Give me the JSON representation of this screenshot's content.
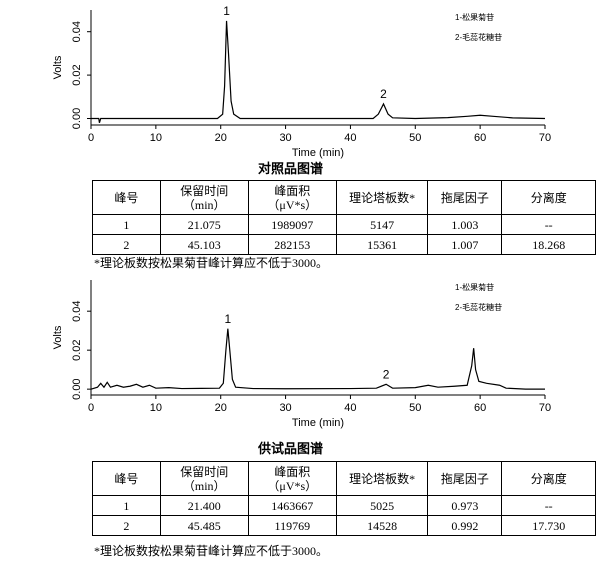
{
  "chart_data": [
    {
      "type": "line",
      "xlabel": "Time (min)",
      "ylabel": "Volts",
      "xlim": [
        0,
        70
      ],
      "xticks": [
        0,
        10,
        20,
        30,
        40,
        50,
        60,
        70
      ],
      "ylim": [
        -0.003,
        0.05
      ],
      "yticks": [
        {
          "value": 0,
          "label": "0.00"
        },
        {
          "value": 0.02,
          "label": "0.02"
        },
        {
          "value": 0.04,
          "label": "0.04"
        }
      ],
      "annotations": [
        "1",
        "2"
      ],
      "notes": [
        "1-松果菊苷",
        "2-毛蕊花糖苷"
      ],
      "x": [
        0,
        1.2,
        1.3,
        1.5,
        5,
        15,
        19.5,
        20.3,
        20.6,
        20.9,
        21.2,
        21.6,
        22,
        23,
        30,
        40,
        43.5,
        44.3,
        45.1,
        45.8,
        46.5,
        50,
        55,
        58,
        60,
        62,
        65,
        70
      ],
      "series": [
        {
          "color": "#000000",
          "values": [
            0,
            0,
            -0.002,
            0,
            0,
            0,
            0,
            0.002,
            0.015,
            0.045,
            0.03,
            0.008,
            0.002,
            0,
            0,
            0,
            0,
            0.002,
            0.0067,
            0.002,
            0.0003,
            0,
            0.0004,
            0.001,
            0.0015,
            0.001,
            0.0003,
            0
          ]
        }
      ]
    },
    {
      "type": "line",
      "xlabel": "Time (min)",
      "ylabel": "Volts",
      "xlim": [
        0,
        70
      ],
      "xticks": [
        0,
        10,
        20,
        30,
        40,
        50,
        60,
        70
      ],
      "ylim": [
        -0.003,
        0.056
      ],
      "yticks": [
        {
          "value": 0,
          "label": "0.00"
        },
        {
          "value": 0.02,
          "label": "0.02"
        },
        {
          "value": 0.04,
          "label": "0.04"
        }
      ],
      "annotations": [
        "1",
        "2"
      ],
      "notes": [
        "1-松果菊苷",
        "2-毛蕊花糖苷"
      ],
      "x": [
        0,
        1,
        1.5,
        2,
        2.5,
        3,
        4,
        5,
        6,
        7,
        8,
        9,
        10,
        12,
        14,
        17,
        19.8,
        20.4,
        20.8,
        21.1,
        21.4,
        21.8,
        22.3,
        25,
        30,
        40,
        44,
        45.5,
        46.5,
        50,
        52,
        53.5,
        56,
        58,
        58.7,
        59,
        59.3,
        59.8,
        61,
        63,
        64,
        67,
        70
      ],
      "series": [
        {
          "color": "#000000",
          "values": [
            0,
            0.001,
            0.003,
            0.001,
            0.0035,
            0.001,
            0.002,
            0.001,
            0.0015,
            0.0025,
            0.001,
            0.002,
            0.0005,
            0.0008,
            0.0003,
            0.0004,
            0.0005,
            0.003,
            0.02,
            0.031,
            0.02,
            0.005,
            0.001,
            0.0003,
            0.0002,
            0.0003,
            0.0005,
            0.0025,
            0.0005,
            0.0008,
            0.002,
            0.001,
            0.0015,
            0.002,
            0.012,
            0.021,
            0.01,
            0.004,
            0.003,
            0.002,
            0.0005,
            0,
            0
          ]
        }
      ]
    }
  ],
  "sections": [
    {
      "caption": "对照品图谱",
      "table": {
        "header": [
          "峰号",
          "保留时间\n（min）",
          "峰面积\n（μV*s）",
          "理论塔板数*",
          "拖尾因子",
          "分离度"
        ],
        "rows": [
          [
            "1",
            "21.075",
            "1989097",
            "5147",
            "1.003",
            "--"
          ],
          [
            "2",
            "45.103",
            "282153",
            "15361",
            "1.007",
            "18.268"
          ]
        ]
      },
      "note": "*理论板数按松果菊苷峰计算应不低于3000。"
    },
    {
      "caption": "供试品图谱",
      "table": {
        "header": [
          "峰号",
          "保留时间\n（min）",
          "峰面积\n（μV*s）",
          "理论塔板数*",
          "拖尾因子",
          "分离度"
        ],
        "rows": [
          [
            "1",
            "21.400",
            "1463667",
            "5025",
            "0.973",
            "--"
          ],
          [
            "2",
            "45.485",
            "119769",
            "14528",
            "0.992",
            "17.730"
          ]
        ]
      },
      "note": "*理论板数按松果菊苷峰计算应不低于3000。"
    }
  ]
}
